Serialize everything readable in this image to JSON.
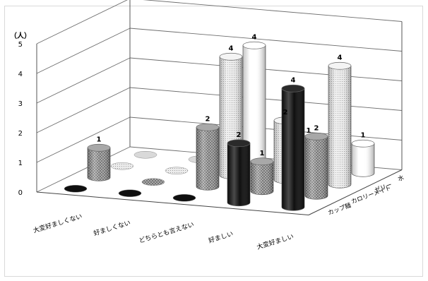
{
  "chart_data": {
    "type": "bar",
    "subtype": "3d-cylinder",
    "unit_label": "（人）",
    "categories": [
      "大変好ましくない",
      "好ましくない",
      "どちらとも言えない",
      "好ましい",
      "大変好ましい"
    ],
    "series": [
      {
        "name": "カップ麺",
        "values": [
          0,
          0,
          0,
          2,
          4
        ],
        "pattern": "black"
      },
      {
        "name": "カロリーメイト",
        "values": [
          1,
          0,
          2,
          1,
          2
        ],
        "pattern": "grid"
      },
      {
        "name": "ゼリー",
        "values": [
          0,
          0,
          4,
          2,
          4
        ],
        "pattern": "dots"
      },
      {
        "name": "水",
        "values": [
          0,
          0,
          4,
          1,
          1
        ],
        "pattern": "white"
      }
    ],
    "ylim": [
      0,
      5
    ],
    "yticks": [
      0,
      1,
      2,
      3,
      4,
      5
    ],
    "grid": true
  }
}
